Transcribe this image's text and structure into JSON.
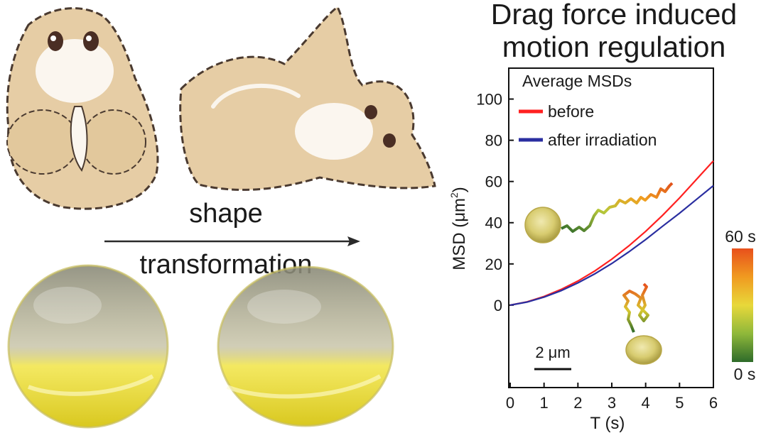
{
  "illustration": {
    "arrow_label_top": "shape",
    "arrow_label_bottom": "transformation"
  },
  "chart_data": {
    "type": "line",
    "title": "Drag force induced motion regulation",
    "title_lines": [
      "Drag force induced",
      "motion regulation"
    ],
    "xlabel": "T (s)",
    "ylabel": "MSD (μm",
    "ylabel_sup": "2",
    "ylabel_close": ")",
    "xlim": [
      0,
      6
    ],
    "ylim": [
      -40,
      115
    ],
    "xticks": [
      0,
      1,
      2,
      3,
      4,
      5,
      6
    ],
    "yticks": [
      0,
      20,
      40,
      60,
      80,
      100
    ],
    "legend_title": "Average MSDs",
    "series": [
      {
        "name": "before",
        "color": "#ff2020",
        "x": [
          0,
          0.5,
          1,
          1.5,
          2,
          2.5,
          3,
          3.5,
          4,
          4.5,
          5,
          5.5,
          6
        ],
        "y": [
          0,
          1.6,
          4.2,
          7.6,
          11.7,
          16.6,
          22.3,
          28.7,
          35.8,
          43.6,
          52.0,
          61.0,
          70.0
        ]
      },
      {
        "name": "after irradiation",
        "color": "#2a2ea0",
        "x": [
          0,
          0.5,
          1,
          1.5,
          2,
          2.5,
          3,
          3.5,
          4,
          4.5,
          5,
          5.5,
          6
        ],
        "y": [
          0,
          1.5,
          3.9,
          7.0,
          10.8,
          15.2,
          20.2,
          25.8,
          31.8,
          38.3,
          44.6,
          51.3,
          58.0
        ]
      }
    ],
    "scale_bar_label": "2 μm",
    "colorbar": {
      "max_label": "60 s",
      "min_label": "0 s",
      "colors": [
        "#2e6b2a",
        "#8fb83a",
        "#e8d83a",
        "#f09a20",
        "#e8501c"
      ]
    }
  }
}
